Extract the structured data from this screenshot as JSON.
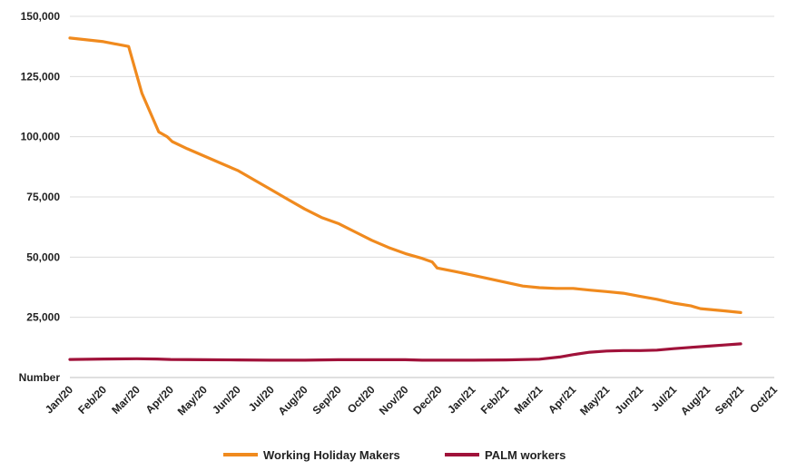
{
  "chart_data": {
    "type": "line",
    "title": "",
    "ylabel": "",
    "xlabel": "",
    "y_axis_bottom_label": "Number",
    "ylim": [
      0,
      150000
    ],
    "yticks": [
      "25,000",
      "50,000",
      "75,000",
      "100,000",
      "125,000",
      "150,000"
    ],
    "ytick_values": [
      25000,
      50000,
      75000,
      100000,
      125000,
      150000
    ],
    "grid": "horizontal",
    "legend_position": "bottom",
    "categories": [
      "Jan/20",
      "Feb/20",
      "Mar/20",
      "Apr/20",
      "May/20",
      "Jun/20",
      "Jul/20",
      "Aug/20",
      "Sep/20",
      "Oct/20",
      "Nov/20",
      "Dec/20",
      "Jan/21",
      "Feb/21",
      "Mar/21",
      "Apr/21",
      "May/21",
      "Jun/21",
      "Jul/21",
      "Aug/21",
      "Sep/21",
      "Oct/21"
    ],
    "series": [
      {
        "name": "Working Holiday Makers",
        "color": "#F08A1E",
        "points": [
          [
            0,
            141000
          ],
          [
            1,
            139500
          ],
          [
            1.75,
            137500
          ],
          [
            2.15,
            118000
          ],
          [
            2.65,
            102000
          ],
          [
            2.9,
            100000
          ],
          [
            3.05,
            98000
          ],
          [
            3.5,
            95000
          ],
          [
            4,
            92000
          ],
          [
            4.5,
            89000
          ],
          [
            5,
            86000
          ],
          [
            5.5,
            82000
          ],
          [
            6,
            78000
          ],
          [
            6.5,
            74000
          ],
          [
            7,
            70000
          ],
          [
            7.5,
            66500
          ],
          [
            8,
            64000
          ],
          [
            8.5,
            60500
          ],
          [
            9,
            57000
          ],
          [
            9.5,
            54000
          ],
          [
            10,
            51500
          ],
          [
            10.5,
            49500
          ],
          [
            10.8,
            48000
          ],
          [
            10.95,
            45500
          ],
          [
            11.5,
            44000
          ],
          [
            12,
            42500
          ],
          [
            12.5,
            41000
          ],
          [
            13,
            39500
          ],
          [
            13.5,
            38000
          ],
          [
            14,
            37300
          ],
          [
            14.5,
            37000
          ],
          [
            15,
            37000
          ],
          [
            15.5,
            36300
          ],
          [
            16,
            35700
          ],
          [
            16.5,
            35000
          ],
          [
            17,
            33700
          ],
          [
            17.5,
            32500
          ],
          [
            18,
            30900
          ],
          [
            18.5,
            29800
          ],
          [
            18.8,
            28600
          ],
          [
            19.5,
            27700
          ],
          [
            20,
            27000
          ]
        ]
      },
      {
        "name": "PALM workers",
        "color": "#A0123A",
        "points": [
          [
            0,
            7500
          ],
          [
            1,
            7700
          ],
          [
            2,
            7800
          ],
          [
            2.6,
            7700
          ],
          [
            3,
            7500
          ],
          [
            4,
            7400
          ],
          [
            5,
            7300
          ],
          [
            6,
            7200
          ],
          [
            7,
            7200
          ],
          [
            8,
            7400
          ],
          [
            9,
            7400
          ],
          [
            10,
            7400
          ],
          [
            10.5,
            7200
          ],
          [
            11,
            7200
          ],
          [
            12,
            7200
          ],
          [
            13,
            7300
          ],
          [
            14,
            7600
          ],
          [
            14.6,
            8500
          ],
          [
            15,
            9500
          ],
          [
            15.5,
            10500
          ],
          [
            16,
            11000
          ],
          [
            16.5,
            11200
          ],
          [
            17,
            11200
          ],
          [
            17.5,
            11400
          ],
          [
            18,
            12000
          ],
          [
            18.5,
            12500
          ],
          [
            19,
            13000
          ],
          [
            19.5,
            13500
          ],
          [
            20,
            14000
          ]
        ]
      }
    ]
  }
}
